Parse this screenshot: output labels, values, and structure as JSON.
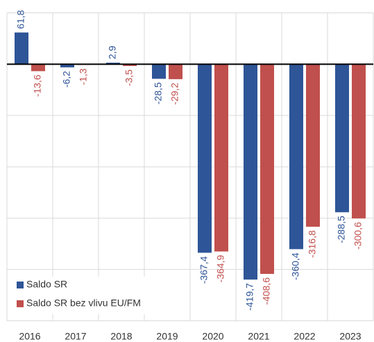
{
  "chart_data": {
    "type": "bar",
    "categories": [
      "2016",
      "2017",
      "2018",
      "2019",
      "2020",
      "2021",
      "2022",
      "2023"
    ],
    "series": [
      {
        "name": "Saldo SR",
        "color": "#2e5597",
        "values": [
          61.8,
          -6.2,
          2.9,
          -28.5,
          -367.4,
          -419.7,
          -360.4,
          -288.5
        ],
        "value_labels": [
          "61,8",
          "-6,2",
          "2,9",
          "-28,5",
          "-367,4",
          "-419,7",
          "-360,4",
          "-288,5"
        ]
      },
      {
        "name": "Saldo SR bez vlivu EU/FM",
        "color": "#c0504d",
        "values": [
          -13.6,
          -1.3,
          -3.5,
          -29.2,
          -364.9,
          -408.6,
          -316.8,
          -300.6
        ],
        "value_labels": [
          "-13,6",
          "-1,3",
          "-3,5",
          "-29,2",
          "-364,9",
          "-408,6",
          "-316,8",
          "-300,6"
        ]
      }
    ],
    "ylim": [
      -500,
      100
    ],
    "yticks": [
      -500,
      -400,
      -300,
      -200,
      -100,
      0,
      100
    ],
    "grid": true,
    "legend": "lower left"
  }
}
